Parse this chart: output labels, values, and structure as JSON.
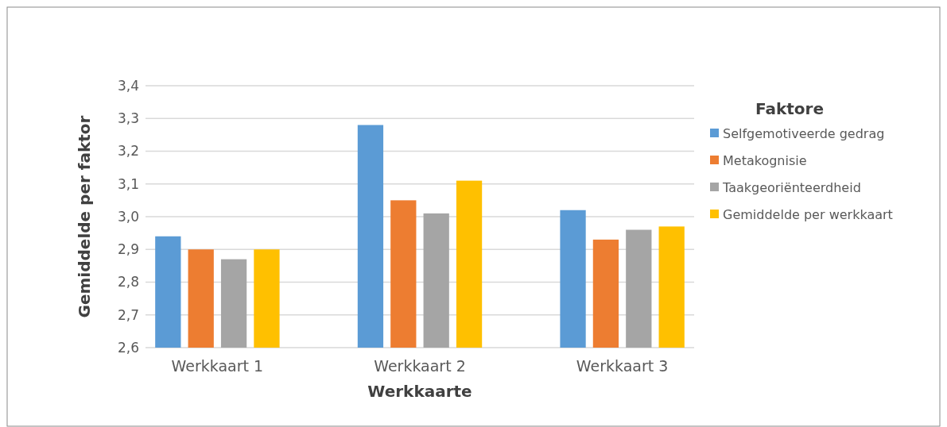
{
  "chart_data": {
    "type": "bar",
    "xlabel": "Werkkaarte",
    "ylabel": "Gemiddelde per faktor",
    "legend_title": "Faktore",
    "categories": [
      "Werkkaart 1",
      "Werkkaart 2",
      "Werkkaart 3"
    ],
    "series": [
      {
        "name": "Selfgemotiveerde gedrag",
        "color": "#5b9bd5",
        "values": [
          2.94,
          3.28,
          3.02
        ]
      },
      {
        "name": "Metakognisie",
        "color": "#ed7d31",
        "values": [
          2.9,
          3.05,
          2.93
        ]
      },
      {
        "name": "Taakgeoriënteerdheid",
        "color": "#a5a5a5",
        "values": [
          2.87,
          3.01,
          2.96
        ]
      },
      {
        "name": "Gemiddelde per werkkaart",
        "color": "#ffc000",
        "values": [
          2.9,
          3.11,
          2.97
        ]
      }
    ],
    "ylim": [
      2.6,
      3.4
    ],
    "yticks": [
      {
        "value": 2.6,
        "label": "2,6"
      },
      {
        "value": 2.7,
        "label": "2,7"
      },
      {
        "value": 2.8,
        "label": "2,8"
      },
      {
        "value": 2.9,
        "label": "2,9"
      },
      {
        "value": 3.0,
        "label": "3,0"
      },
      {
        "value": 3.1,
        "label": "3,1"
      },
      {
        "value": 3.2,
        "label": "3,2"
      },
      {
        "value": 3.3,
        "label": "3,3"
      },
      {
        "value": 3.4,
        "label": "3,4"
      }
    ],
    "grid": "y",
    "legend": "right"
  }
}
